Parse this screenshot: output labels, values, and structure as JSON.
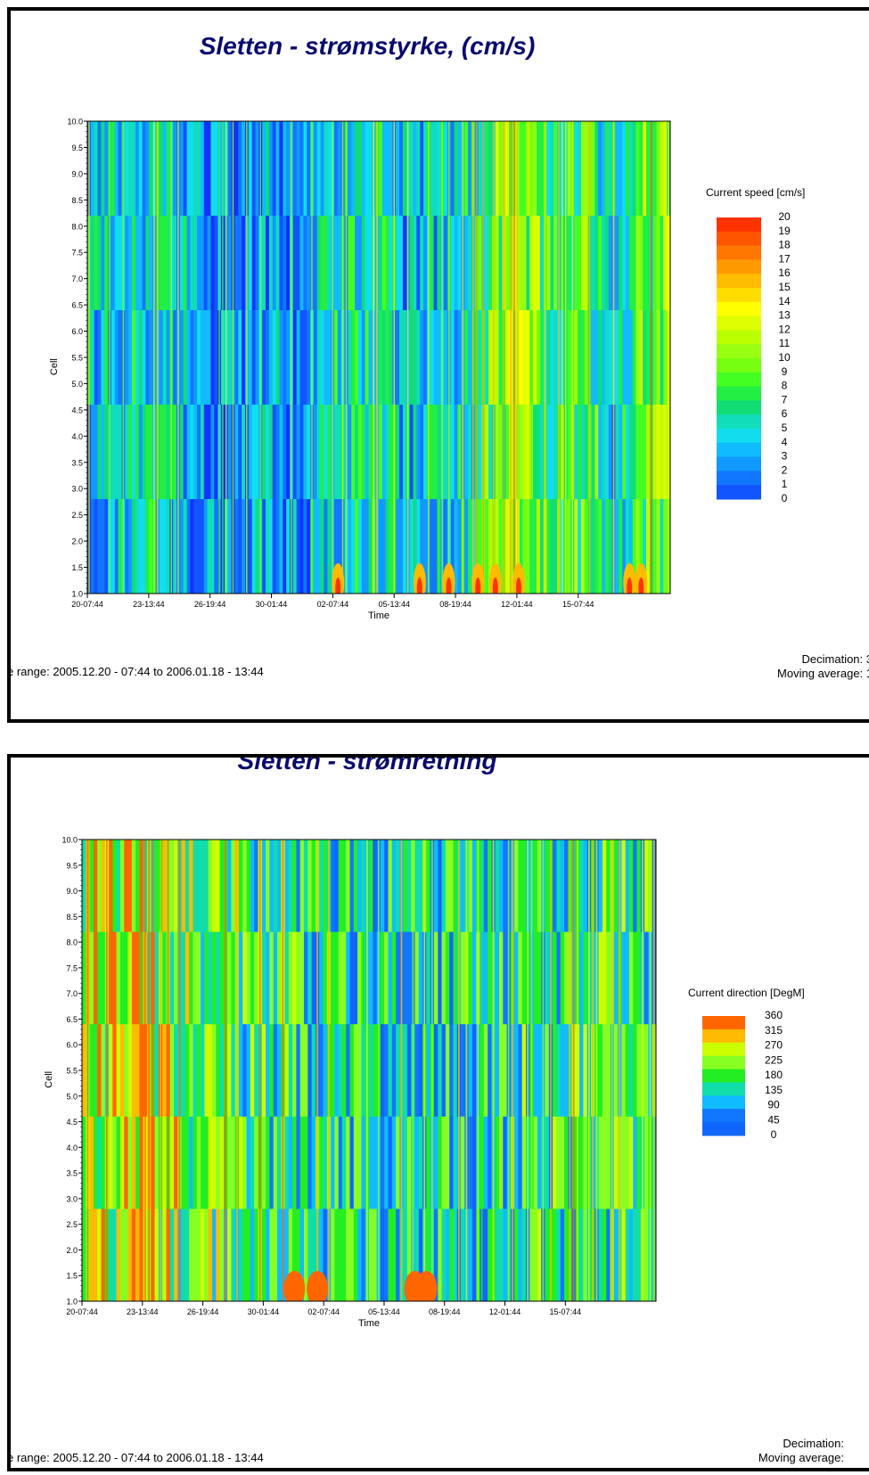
{
  "charts": [
    {
      "title": "Sletten - strømstyrke, (cm/s)",
      "time_range": "e range: 2005.12.20 - 07:44  to  2006.01.18 - 13:44",
      "decimation": "Decimation: 3",
      "moving_average": "Moving average: 1"
    },
    {
      "title": "Sletten - strømretning",
      "time_range": "e range: 2005.12.20 - 07:44  to  2006.01.18 - 13:44",
      "decimation": "Decimation:",
      "moving_average": "Moving average:"
    }
  ],
  "chart_data": [
    {
      "type": "heatmap",
      "title": "Sletten - strømstyrke, (cm/s)",
      "xlabel": "Time",
      "ylabel": "Cell",
      "x_tick_labels": [
        "20-07:44",
        "23-13:44",
        "26-19:44",
        "30-01:44",
        "02-07:44",
        "05-13:44",
        "08-19:44",
        "12-01:44",
        "15-07:44"
      ],
      "y_tick_labels": [
        "1.0",
        "1.5",
        "2.0",
        "2.5",
        "3.0",
        "3.5",
        "4.0",
        "4.5",
        "5.0",
        "5.5",
        "6.0",
        "6.5",
        "7.0",
        "7.5",
        "8.0",
        "8.5",
        "9.0",
        "9.5",
        "10.0"
      ],
      "ylim": [
        1.0,
        10.0
      ],
      "colorbar_label": "Current speed [cm/s]",
      "colorbar_levels": [
        "20",
        "19",
        "18",
        "17",
        "16",
        "15",
        "14",
        "13",
        "12",
        "11",
        "10",
        "9",
        "8",
        "7",
        "6",
        "5",
        "4",
        "3",
        "2",
        "1",
        "0"
      ],
      "colorbar_colors": [
        "#ff3300",
        "#ff5500",
        "#ff7700",
        "#ff9900",
        "#ffbb00",
        "#ffdd00",
        "#ffff00",
        "#ddff00",
        "#bbff00",
        "#99ff11",
        "#77ff11",
        "#44ff22",
        "#22ee44",
        "#11dd77",
        "#11ddbb",
        "#11ddee",
        "#11bbff",
        "#1199ff",
        "#1177ff",
        "#1155ff",
        "#1133ff"
      ],
      "profile": [
        {
          "t": 0.0,
          "v": 4
        },
        {
          "t": 0.05,
          "v": 5
        },
        {
          "t": 0.1,
          "v": 6
        },
        {
          "t": 0.15,
          "v": 5
        },
        {
          "t": 0.2,
          "v": 3
        },
        {
          "t": 0.25,
          "v": 3
        },
        {
          "t": 0.3,
          "v": 4
        },
        {
          "t": 0.35,
          "v": 3
        },
        {
          "t": 0.4,
          "v": 5
        },
        {
          "t": 0.45,
          "v": 6
        },
        {
          "t": 0.5,
          "v": 6
        },
        {
          "t": 0.55,
          "v": 4
        },
        {
          "t": 0.6,
          "v": 5
        },
        {
          "t": 0.65,
          "v": 6
        },
        {
          "t": 0.7,
          "v": 10
        },
        {
          "t": 0.75,
          "v": 11
        },
        {
          "t": 0.8,
          "v": 7
        },
        {
          "t": 0.85,
          "v": 9
        },
        {
          "t": 0.9,
          "v": 5
        },
        {
          "t": 0.95,
          "v": 9
        },
        {
          "t": 1.0,
          "v": 10
        }
      ]
    },
    {
      "type": "heatmap",
      "title": "Sletten - strømretning",
      "xlabel": "Time",
      "ylabel": "Cell",
      "x_tick_labels": [
        "20-07:44",
        "23-13:44",
        "26-19:44",
        "30-01:44",
        "02-07:44",
        "05-13:44",
        "08-19:44",
        "12-01:44",
        "15-07:44"
      ],
      "y_tick_labels": [
        "1.0",
        "1.5",
        "2.0",
        "2.5",
        "3.0",
        "3.5",
        "4.0",
        "4.5",
        "5.0",
        "5.5",
        "6.0",
        "6.5",
        "7.0",
        "7.5",
        "8.0",
        "8.5",
        "9.0",
        "9.5",
        "10.0"
      ],
      "ylim": [
        1.0,
        10.0
      ],
      "colorbar_label": "Current direction [DegM]",
      "colorbar_levels": [
        "360",
        "315",
        "270",
        "225",
        "180",
        "135",
        "90",
        "45",
        "0"
      ],
      "colorbar_colors": [
        "#ff6600",
        "#ffbb00",
        "#ccff00",
        "#88ff22",
        "#22ee22",
        "#11ddaa",
        "#11bbff",
        "#1177ff",
        "#1166ff"
      ],
      "profile": [
        {
          "t": 0.0,
          "v": 230
        },
        {
          "t": 0.1,
          "v": 260
        },
        {
          "t": 0.2,
          "v": 200
        },
        {
          "t": 0.3,
          "v": 180
        },
        {
          "t": 0.4,
          "v": 140
        },
        {
          "t": 0.5,
          "v": 120
        },
        {
          "t": 0.6,
          "v": 130
        },
        {
          "t": 0.7,
          "v": 110
        },
        {
          "t": 0.8,
          "v": 150
        },
        {
          "t": 0.9,
          "v": 160
        },
        {
          "t": 1.0,
          "v": 150
        }
      ]
    }
  ]
}
